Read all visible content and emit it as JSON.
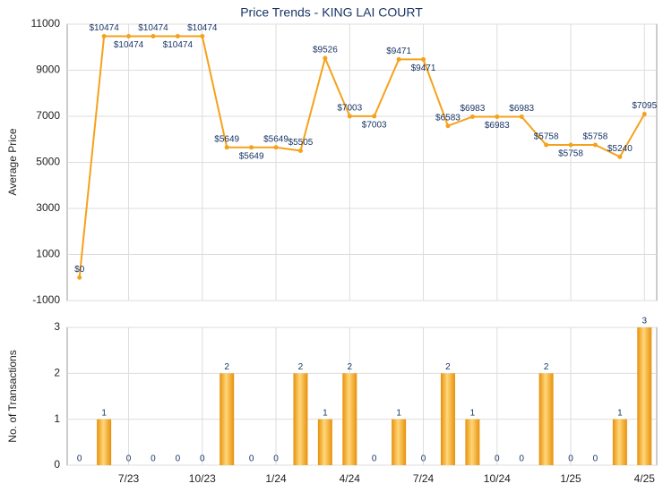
{
  "chart_data": [
    {
      "type": "line",
      "title": "Price Trends - KING LAI COURT",
      "y_label": "Average Price",
      "color": "#f5a21b",
      "values": [
        0,
        10474,
        10474,
        10474,
        10474,
        10474,
        5649,
        5649,
        5649,
        5505,
        9526,
        7003,
        7003,
        9471,
        9471,
        6583,
        6983,
        6983,
        6983,
        5758,
        5758,
        5758,
        5240,
        7095
      ],
      "value_labels": [
        "$0",
        "$10474",
        "$10474",
        "$10474",
        "$10474",
        "$10474",
        "$5649",
        "$5649",
        "$5649",
        "$5505",
        "$9526",
        "$7003",
        "$7003",
        "$9471",
        "$9471",
        "$6583",
        "$6983",
        "$6983",
        "$6983",
        "$5758",
        "$5758",
        "$5758",
        "$5240",
        "$7095"
      ],
      "ylim": [
        -1000,
        11000
      ],
      "yticks": [
        -1000,
        1000,
        3000,
        5000,
        7000,
        9000,
        11000
      ],
      "grid": true
    },
    {
      "type": "bar",
      "y_label": "No. of Transactions",
      "color": "#f5a21b",
      "categories": [
        null,
        null,
        "7/23",
        null,
        null,
        "10/23",
        null,
        null,
        "1/24",
        null,
        null,
        "4/24",
        null,
        null,
        "7/24",
        null,
        null,
        "10/24",
        null,
        null,
        "1/25",
        null,
        null,
        "4/25"
      ],
      "values": [
        0,
        1,
        0,
        0,
        0,
        0,
        2,
        0,
        0,
        2,
        1,
        2,
        0,
        1,
        0,
        2,
        1,
        0,
        0,
        2,
        0,
        0,
        1,
        3
      ],
      "ylim": [
        0,
        3
      ],
      "yticks": [
        0,
        1,
        2,
        3
      ],
      "grid": true
    }
  ]
}
